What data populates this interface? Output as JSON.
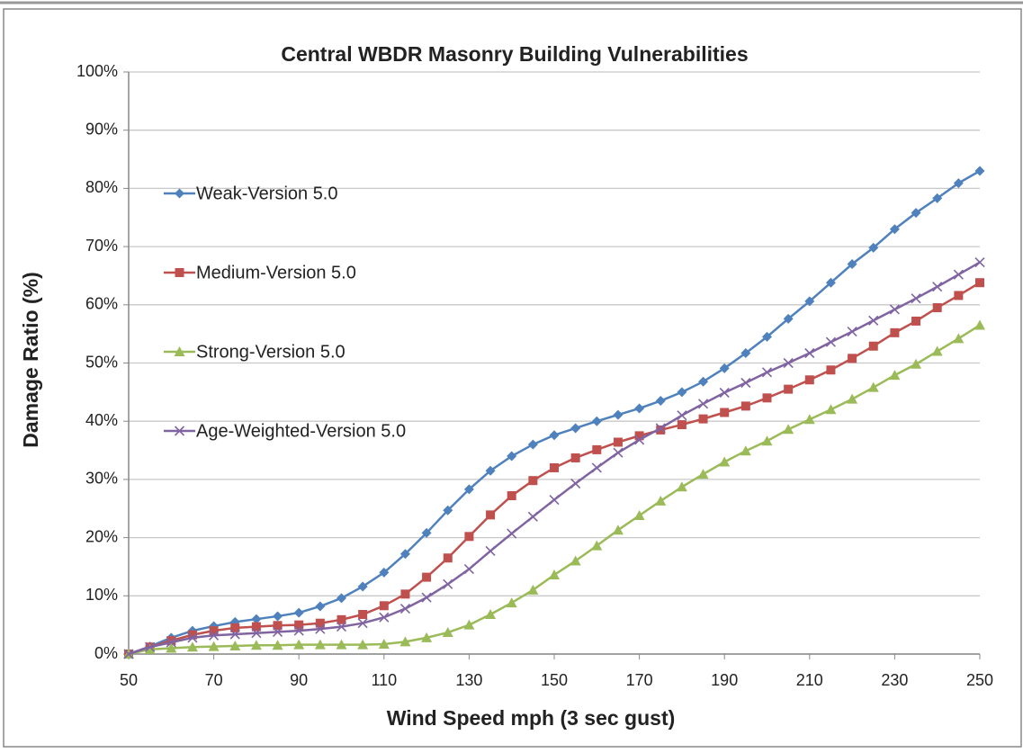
{
  "chart_data": {
    "type": "line",
    "title": "Central WBDR Masonry Building Vulnerabilities",
    "xlabel": "Wind Speed mph (3 sec gust)",
    "ylabel": "Damage Ratio (%)",
    "x": [
      50,
      55,
      60,
      65,
      70,
      75,
      80,
      85,
      90,
      95,
      100,
      105,
      110,
      115,
      120,
      125,
      130,
      135,
      140,
      145,
      150,
      155,
      160,
      165,
      170,
      175,
      180,
      185,
      190,
      195,
      200,
      205,
      210,
      215,
      220,
      225,
      230,
      235,
      240,
      245,
      250
    ],
    "xlim": [
      50,
      250
    ],
    "xticks": [
      50,
      70,
      90,
      110,
      130,
      150,
      170,
      190,
      210,
      230,
      250
    ],
    "ylim": [
      0,
      100
    ],
    "yticks": [
      {
        "value": 0,
        "label": "0%"
      },
      {
        "value": 10,
        "label": "10%"
      },
      {
        "value": 20,
        "label": "20%"
      },
      {
        "value": 30,
        "label": "30%"
      },
      {
        "value": 40,
        "label": "40%"
      },
      {
        "value": 50,
        "label": "50%"
      },
      {
        "value": 60,
        "label": "60%"
      },
      {
        "value": 70,
        "label": "70%"
      },
      {
        "value": 80,
        "label": "80%"
      },
      {
        "value": 90,
        "label": "90%"
      },
      {
        "value": 100,
        "label": "100%"
      }
    ],
    "grid": true,
    "legend": "left",
    "series": [
      {
        "name": "Weak-Version 5.0",
        "color": "#4f81bd",
        "marker": "diamond",
        "values": [
          0,
          1.3,
          2.8,
          4,
          4.8,
          5.5,
          6,
          6.5,
          7.1,
          8.2,
          9.6,
          11.6,
          14,
          17.2,
          20.8,
          24.7,
          28.3,
          31.5,
          34,
          36,
          37.6,
          38.8,
          40,
          41.1,
          42.2,
          43.5,
          45,
          46.8,
          49.1,
          51.7,
          54.5,
          57.6,
          60.6,
          63.8,
          67,
          69.8,
          73,
          75.8,
          78.3,
          80.9,
          83
        ]
      },
      {
        "name": "Medium-Version 5.0",
        "color": "#c0504d",
        "marker": "square",
        "values": [
          0,
          1.2,
          2.3,
          3.3,
          4,
          4.5,
          4.7,
          4.9,
          5,
          5.3,
          5.9,
          6.8,
          8.3,
          10.3,
          13.2,
          16.5,
          20.2,
          23.9,
          27.2,
          29.8,
          32,
          33.7,
          35.1,
          36.4,
          37.5,
          38.5,
          39.4,
          40.4,
          41.5,
          42.6,
          44,
          45.5,
          47.1,
          48.8,
          50.8,
          52.9,
          55.2,
          57.2,
          59.5,
          61.6,
          63.8
        ]
      },
      {
        "name": "Strong-Version 5.0",
        "color": "#9bbb59",
        "marker": "triangle",
        "values": [
          0,
          0.8,
          1,
          1.2,
          1.3,
          1.4,
          1.5,
          1.5,
          1.6,
          1.6,
          1.6,
          1.6,
          1.7,
          2.1,
          2.8,
          3.7,
          5,
          6.8,
          8.8,
          11,
          13.6,
          16,
          18.6,
          21.3,
          23.8,
          26.3,
          28.7,
          30.9,
          33,
          34.9,
          36.6,
          38.6,
          40.3,
          42,
          43.8,
          45.8,
          47.9,
          49.8,
          52,
          54.2,
          56.5
        ]
      },
      {
        "name": "Age-Weighted-Version 5.0",
        "color": "#8064a2",
        "marker": "x",
        "values": [
          0,
          1.2,
          2,
          2.8,
          3.2,
          3.4,
          3.6,
          3.8,
          4,
          4.3,
          4.7,
          5.3,
          6.3,
          7.8,
          9.7,
          12,
          14.6,
          17.7,
          20.7,
          23.6,
          26.5,
          29.3,
          32,
          34.6,
          36.8,
          38.8,
          41,
          43,
          44.9,
          46.6,
          48.4,
          50,
          51.7,
          53.6,
          55.4,
          57.3,
          59.2,
          61.1,
          63.1,
          65.2,
          67.3
        ]
      }
    ]
  }
}
